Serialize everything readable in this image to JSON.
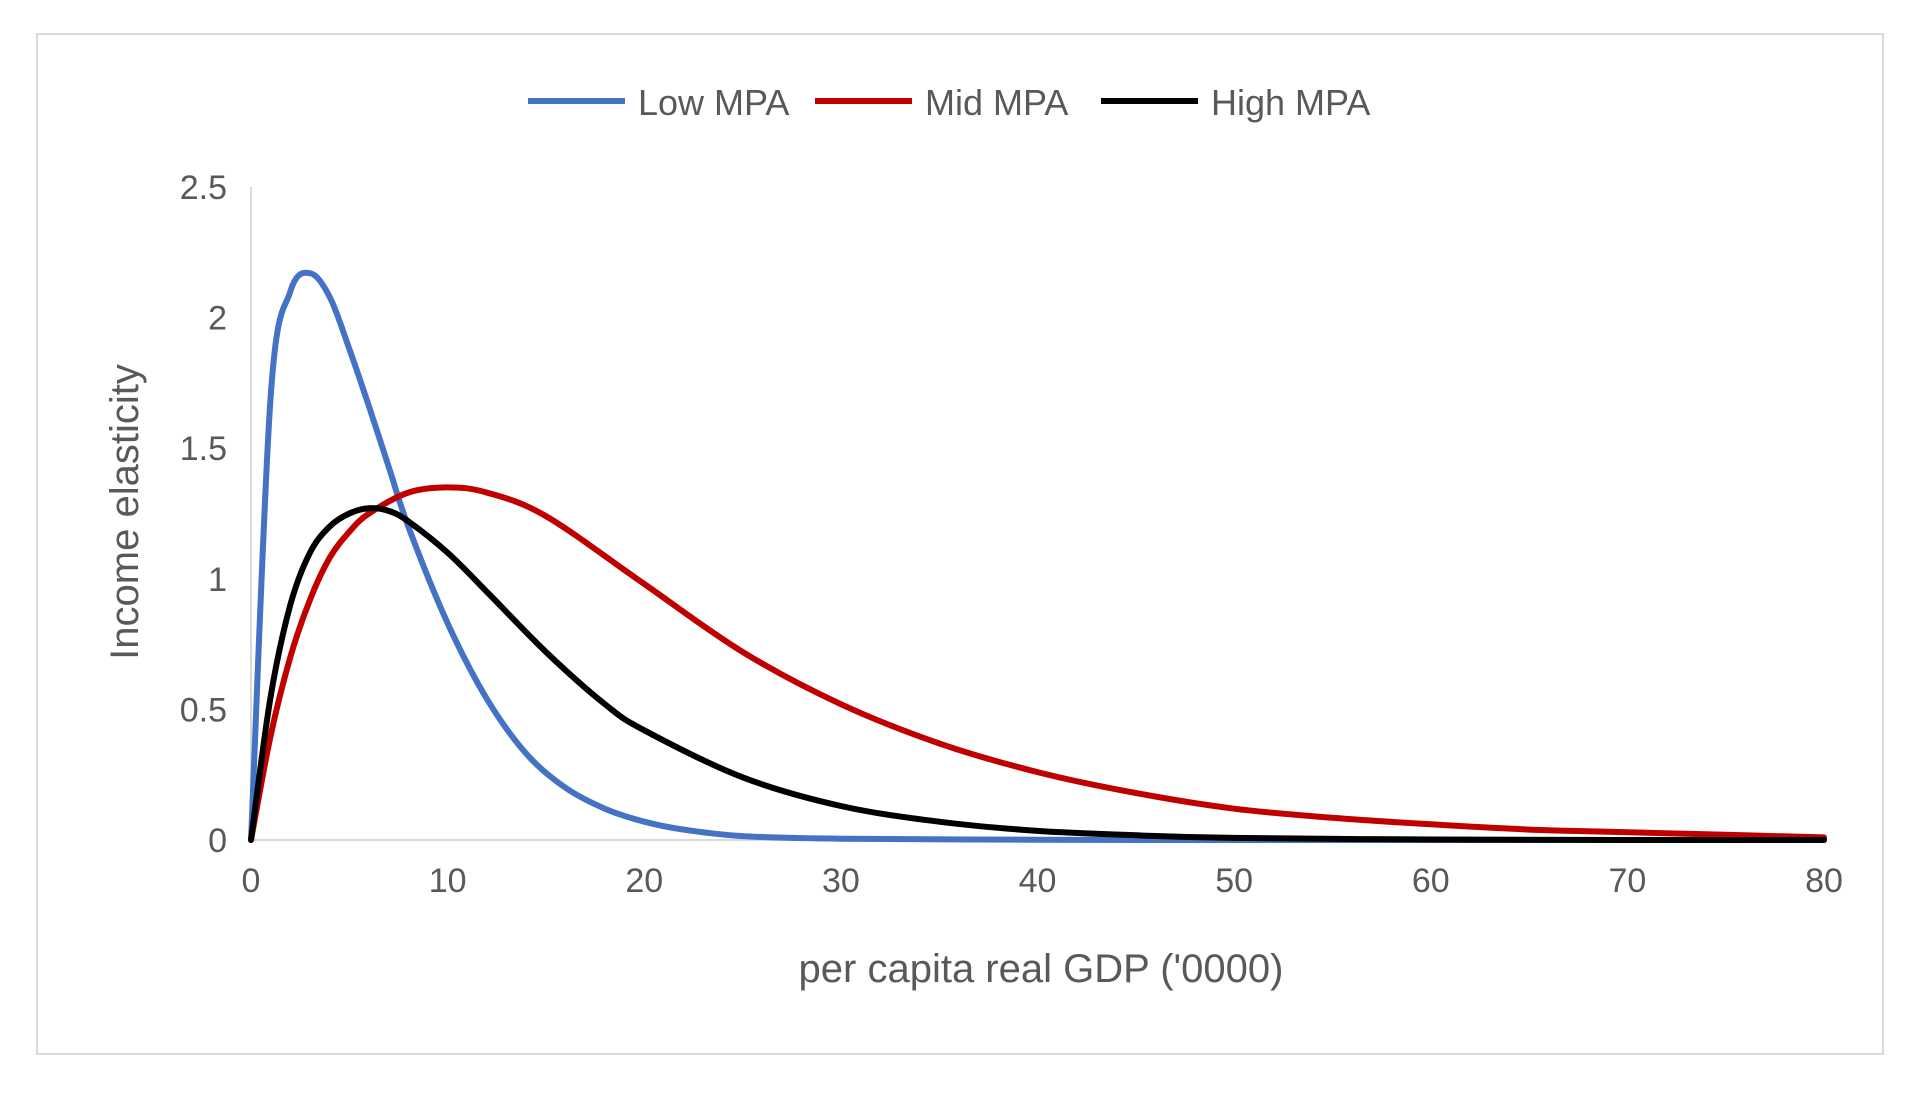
{
  "chart_data": {
    "type": "line",
    "title": "",
    "xlabel": "per capita real GDP ('0000)",
    "ylabel": "Income elasticity",
    "xlim": [
      0,
      80
    ],
    "ylim": [
      0,
      2.5
    ],
    "x_ticks": [
      "0",
      "10",
      "20",
      "30",
      "40",
      "50",
      "60",
      "70",
      "80"
    ],
    "y_ticks": [
      "0",
      "0.5",
      "1",
      "1.5",
      "2",
      "2.5"
    ],
    "legend_position": "top",
    "grid": false,
    "series": [
      {
        "name": "Low MPA",
        "color": "#4472c4",
        "x": [
          0,
          1,
          2,
          3,
          4,
          5,
          6,
          7,
          8,
          10,
          12,
          14,
          16,
          18,
          20,
          22,
          25,
          30,
          40,
          50,
          60,
          70,
          80
        ],
        "values": [
          0,
          1.7,
          2.1,
          2.17,
          2.08,
          1.88,
          1.66,
          1.43,
          1.2,
          0.83,
          0.54,
          0.33,
          0.2,
          0.12,
          0.07,
          0.04,
          0.015,
          0.005,
          0.001,
          0,
          0,
          0,
          0
        ]
      },
      {
        "name": "Mid MPA",
        "color": "#c00000",
        "x": [
          0,
          1,
          2,
          3,
          4,
          5,
          6,
          8,
          10,
          12,
          15,
          20,
          25,
          30,
          35,
          40,
          45,
          50,
          55,
          60,
          65,
          70,
          75,
          80
        ],
        "values": [
          0,
          0.4,
          0.7,
          0.92,
          1.08,
          1.18,
          1.25,
          1.33,
          1.35,
          1.33,
          1.24,
          0.98,
          0.72,
          0.52,
          0.37,
          0.26,
          0.18,
          0.12,
          0.085,
          0.06,
          0.04,
          0.03,
          0.02,
          0.01
        ]
      },
      {
        "name": "High MPA",
        "color": "#000000",
        "x": [
          0,
          1,
          2,
          3,
          4,
          5,
          6,
          7,
          8,
          10,
          12,
          15,
          18,
          20,
          25,
          30,
          35,
          40,
          45,
          50,
          60,
          70,
          80
        ],
        "values": [
          0,
          0.55,
          0.9,
          1.1,
          1.2,
          1.25,
          1.27,
          1.26,
          1.22,
          1.1,
          0.95,
          0.72,
          0.52,
          0.42,
          0.24,
          0.13,
          0.07,
          0.035,
          0.018,
          0.008,
          0.002,
          0,
          0
        ]
      }
    ]
  }
}
